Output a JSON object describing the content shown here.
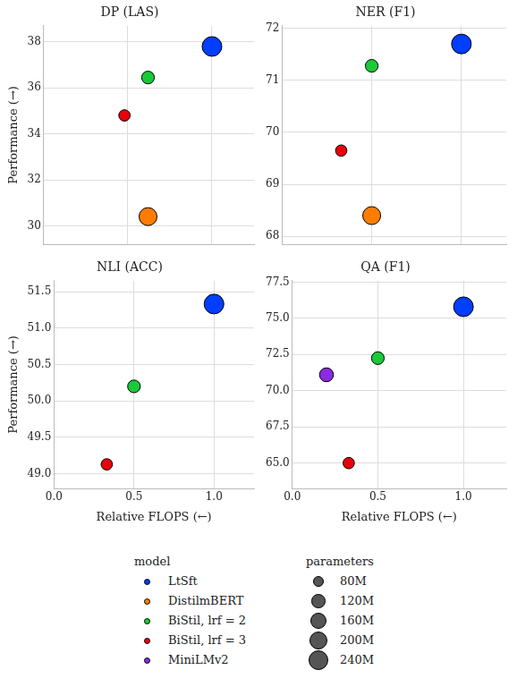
{
  "chart_data": [
    {
      "type": "bubble",
      "title": "DP (LAS)",
      "y_label": "Performance (→)",
      "xlim": [
        0,
        1.25
      ],
      "xticks": [
        {
          "value": 0,
          "label": "0.0"
        },
        0.5,
        {
          "value": 1,
          "label": "1.0"
        }
      ],
      "ylim": [
        29.2,
        38.7
      ],
      "yticks": [
        30,
        32,
        34,
        36,
        38
      ],
      "grid": true,
      "tick_labels": "y",
      "series": [
        {
          "name": "LtSft",
          "color": "#023eff",
          "x": [
            1.0
          ],
          "values": [
            37.8
          ],
          "sizes": [
            240
          ]
        },
        {
          "name": "DistilmBERT",
          "color": "#ff7c00",
          "x": [
            0.62
          ],
          "values": [
            30.4
          ],
          "sizes": [
            200
          ]
        },
        {
          "name": "BiStil, lrf = 2",
          "color": "#1ac938",
          "x": [
            0.62
          ],
          "values": [
            36.45
          ],
          "sizes": [
            100
          ]
        },
        {
          "name": "BiStil, lrf = 3",
          "color": "#e8000b",
          "x": [
            0.48
          ],
          "values": [
            34.8
          ],
          "sizes": [
            80
          ]
        }
      ]
    },
    {
      "type": "bubble",
      "title": "NER (F1)",
      "xlim": [
        0,
        1.25
      ],
      "xticks": [
        {
          "value": 0,
          "label": "0.0"
        },
        0.5,
        {
          "value": 1,
          "label": "1.0"
        }
      ],
      "ylim": [
        67.85,
        72.05
      ],
      "yticks": [
        68,
        69,
        70,
        71,
        72
      ],
      "grid": true,
      "tick_labels": "y",
      "series": [
        {
          "name": "LtSft",
          "color": "#023eff",
          "x": [
            1.0
          ],
          "values": [
            71.7
          ],
          "sizes": [
            240
          ]
        },
        {
          "name": "DistilmBERT",
          "color": "#ff7c00",
          "x": [
            0.5
          ],
          "values": [
            68.4
          ],
          "sizes": [
            200
          ]
        },
        {
          "name": "BiStil, lrf = 2",
          "color": "#1ac938",
          "x": [
            0.5
          ],
          "values": [
            71.28
          ],
          "sizes": [
            100
          ]
        },
        {
          "name": "BiStil, lrf = 3",
          "color": "#e8000b",
          "x": [
            0.33
          ],
          "values": [
            69.65
          ],
          "sizes": [
            80
          ]
        }
      ]
    },
    {
      "type": "bubble",
      "title": "NLI (ACC)",
      "y_label": "Performance (→)",
      "x_label": "Relative FLOPS (←)",
      "xlim": [
        0,
        1.25
      ],
      "xticks": [
        {
          "value": 0,
          "label": "0.0"
        },
        0.5,
        {
          "value": 1,
          "label": "1.0"
        }
      ],
      "ylim": [
        48.8,
        51.65
      ],
      "yticks": [
        {
          "value": 49,
          "label": "49.0"
        },
        49.5,
        {
          "value": 50,
          "label": "50.0"
        },
        50.5,
        {
          "value": 51,
          "label": "51.0"
        },
        51.5
      ],
      "grid": true,
      "series": [
        {
          "name": "LtSft",
          "color": "#023eff",
          "x": [
            1.0
          ],
          "values": [
            51.33
          ],
          "sizes": [
            240
          ]
        },
        {
          "name": "BiStil, lrf = 2",
          "color": "#1ac938",
          "x": [
            0.5
          ],
          "values": [
            50.2
          ],
          "sizes": [
            100
          ]
        },
        {
          "name": "BiStil, lrf = 3",
          "color": "#e8000b",
          "x": [
            0.33
          ],
          "values": [
            49.13
          ],
          "sizes": [
            80
          ]
        }
      ]
    },
    {
      "type": "bubble",
      "title": "QA (F1)",
      "x_label": "Relative FLOPS (←)",
      "xlim": [
        0,
        1.25
      ],
      "xticks": [
        {
          "value": 0,
          "label": "0.0"
        },
        0.5,
        {
          "value": 1,
          "label": "1.0"
        }
      ],
      "ylim": [
        63.25,
        77.6
      ],
      "yticks": [
        {
          "value": 65,
          "label": "65.0"
        },
        67.5,
        {
          "value": 70,
          "label": "70.0"
        },
        72.5,
        {
          "value": 75,
          "label": "75.0"
        },
        77.5
      ],
      "grid": true,
      "series": [
        {
          "name": "LtSft",
          "color": "#023eff",
          "x": [
            1.0
          ],
          "values": [
            75.8
          ],
          "sizes": [
            240
          ]
        },
        {
          "name": "BiStil, lrf = 2",
          "color": "#1ac938",
          "x": [
            0.5
          ],
          "values": [
            72.25
          ],
          "sizes": [
            100
          ]
        },
        {
          "name": "MiniLMv2",
          "color": "#8b2be2",
          "x": [
            0.2
          ],
          "values": [
            71.1
          ],
          "sizes": [
            120
          ]
        },
        {
          "name": "BiStil, lrf = 3",
          "color": "#e8000b",
          "x": [
            0.33
          ],
          "values": [
            65.0
          ],
          "sizes": [
            80
          ]
        }
      ]
    }
  ],
  "shared_legend": {
    "model_title": "model",
    "models": [
      {
        "name": "LtSft",
        "color": "#023eff"
      },
      {
        "name": "DistilmBERT",
        "color": "#ff7c00"
      },
      {
        "name": "BiStil, lrf = 2",
        "color": "#1ac938"
      },
      {
        "name": "BiStil, lrf = 3",
        "color": "#e8000b"
      },
      {
        "name": "MiniLMv2",
        "color": "#8b2be2"
      }
    ],
    "size_title": "parameters",
    "sizes": [
      {
        "value": 80,
        "label": "80M"
      },
      {
        "value": 120,
        "label": "120M"
      },
      {
        "value": 160,
        "label": "160M"
      },
      {
        "value": 200,
        "label": "200M"
      },
      {
        "value": 240,
        "label": "240M"
      }
    ]
  }
}
